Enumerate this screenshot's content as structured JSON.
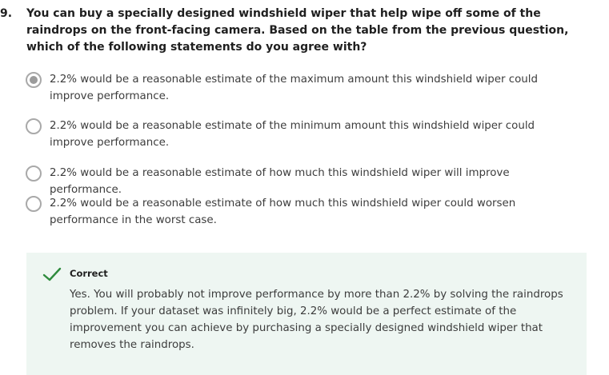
{
  "question": {
    "number": "9.",
    "text": "You can buy a specially designed windshield wiper that help wipe off some of the raindrops on the front-facing camera. Based on the table from the previous question, which of the following statements do you agree with?"
  },
  "options": [
    {
      "text": "2.2% would be a reasonable estimate of the maximum amount this windshield wiper could improve performance.",
      "selected": true
    },
    {
      "text": "2.2% would be a reasonable estimate of the minimum amount this windshield wiper could improve performance.",
      "selected": false
    },
    {
      "text": "2.2% would be a reasonable estimate of how much this windshield wiper will improve performance.",
      "selected": false
    },
    {
      "text": "2.2% would be a reasonable estimate of how much this windshield wiper could worsen performance in the worst case.",
      "selected": false
    }
  ],
  "feedback": {
    "title": "Correct",
    "text": "Yes. You will probably not improve performance by more than 2.2% by solving the raindrops problem. If your dataset was infinitely big, 2.2% would be a perfect estimate of the improvement you can achieve by purchasing a specially designed windshield wiper that removes the raindrops.",
    "accent_color": "#2e8b3d",
    "background_color": "#eef6f2"
  }
}
